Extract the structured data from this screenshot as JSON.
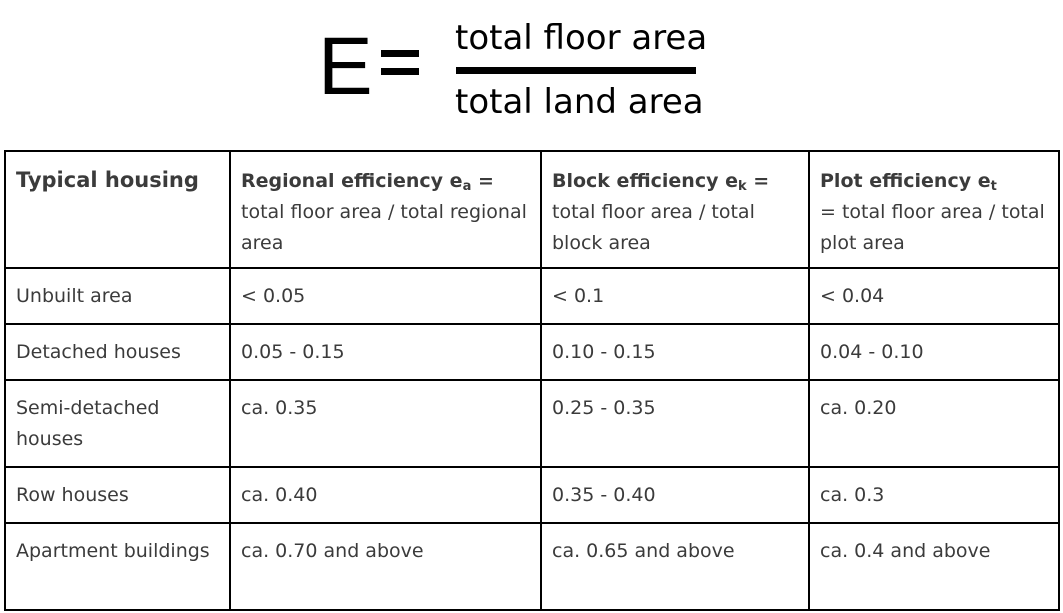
{
  "formula": {
    "lhs": "E",
    "numerator": "total floor area",
    "denominator": "total land area"
  },
  "table": {
    "headers": [
      {
        "bold": "Typical housing",
        "sub": "",
        "rest": ""
      },
      {
        "bold": "Regional efficiency e",
        "sub": "a",
        "eq": " =",
        "rest": "total floor area / total regional area"
      },
      {
        "bold": "Block efficiency e",
        "sub": "k",
        "eq": " =",
        "rest": "total floor area / total block area"
      },
      {
        "bold": "Plot efficiency e",
        "sub": "t",
        "eq": "",
        "rest": "= total floor area / total plot area"
      }
    ],
    "rows": [
      [
        "Unbuilt area",
        "< 0.05",
        "< 0.1",
        "< 0.04"
      ],
      [
        "Detached houses",
        "0.05 - 0.15",
        "0.10 - 0.15",
        "0.04 - 0.10"
      ],
      [
        "Semi-detached houses",
        "ca. 0.35",
        "0.25 - 0.35",
        "ca. 0.20"
      ],
      [
        "Row houses",
        "ca. 0.40",
        "0.35 - 0.40",
        "ca. 0.3"
      ],
      [
        "Apartment buildings",
        "ca. 0.70 and above",
        "ca. 0.65 and above",
        "ca. 0.4 and above"
      ]
    ]
  }
}
